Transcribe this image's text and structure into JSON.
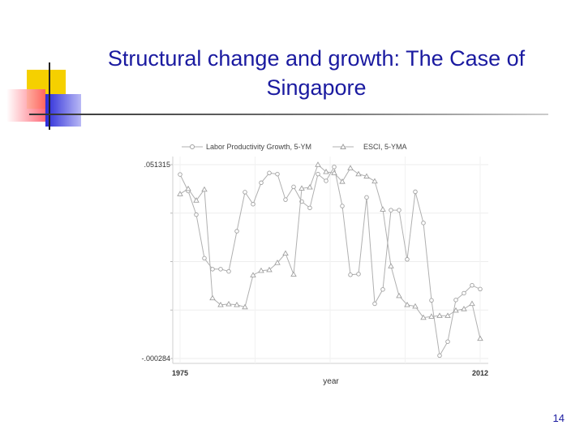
{
  "slide": {
    "title": "Structural change and growth: The Case of Singapore",
    "page_number": "14"
  },
  "chart_data": {
    "type": "line",
    "legend": [
      "Labor Productivity Growth, 5-YM",
      "ESCI, 5-YMA"
    ],
    "legend_position": "top",
    "xlabel": "year",
    "x_ticks": [
      "1975",
      "2012"
    ],
    "y_ticks": [
      ".051315",
      "-.000284"
    ],
    "xlim": [
      1975,
      2012
    ],
    "ylim": [
      -0.000284,
      0.051315
    ],
    "grid": true,
    "colors": [
      "#b0b0b0",
      "#b0b0b0"
    ],
    "series": [
      {
        "name": "Labor Productivity Growth, 5-YM",
        "marker": "circle",
        "x": [
          1975,
          1976,
          1977,
          1978,
          1979,
          1980,
          1981,
          1982,
          1983,
          1984,
          1985,
          1986,
          1987,
          1988,
          1989,
          1990,
          1991,
          1992,
          1993,
          1994,
          1995,
          1996,
          1997,
          1998,
          1999,
          2000,
          2001,
          2002,
          2003,
          2004,
          2005,
          2006,
          2007,
          2008,
          2009,
          2010,
          2011,
          2012
        ],
        "values": [
          0.0487,
          0.0443,
          0.038,
          0.0264,
          0.0235,
          0.0235,
          0.0229,
          0.0336,
          0.044,
          0.0408,
          0.0465,
          0.0491,
          0.0488,
          0.042,
          0.0454,
          0.0415,
          0.0398,
          0.0488,
          0.047,
          0.0507,
          0.0403,
          0.022,
          0.0222,
          0.0426,
          0.0143,
          0.0181,
          0.0392,
          0.0392,
          0.0261,
          0.0441,
          0.0358,
          0.0152,
          0.0005,
          0.0042,
          0.0153,
          0.0171,
          0.0192,
          0.0182
        ]
      },
      {
        "name": "ESCI, 5-YMA",
        "marker": "triangle",
        "x": [
          1975,
          1976,
          1977,
          1978,
          1979,
          1980,
          1981,
          1982,
          1983,
          1984,
          1985,
          1986,
          1987,
          1988,
          1989,
          1990,
          1991,
          1992,
          1993,
          1994,
          1995,
          1996,
          1997,
          1998,
          1999,
          2000,
          2001,
          2002,
          2003,
          2004,
          2005,
          2006,
          2007,
          2008,
          2009,
          2010,
          2011,
          2012
        ],
        "values": [
          0.0435,
          0.0449,
          0.0418,
          0.0447,
          0.0158,
          0.014,
          0.0142,
          0.014,
          0.0134,
          0.0219,
          0.0231,
          0.0233,
          0.0252,
          0.0277,
          0.0221,
          0.045,
          0.0453,
          0.0513,
          0.0494,
          0.0491,
          0.0468,
          0.0504,
          0.0488,
          0.0482,
          0.0469,
          0.0394,
          0.0243,
          0.0164,
          0.014,
          0.0136,
          0.0106,
          0.0109,
          0.0111,
          0.0111,
          0.0125,
          0.0129,
          0.0143,
          0.005
        ]
      }
    ]
  }
}
